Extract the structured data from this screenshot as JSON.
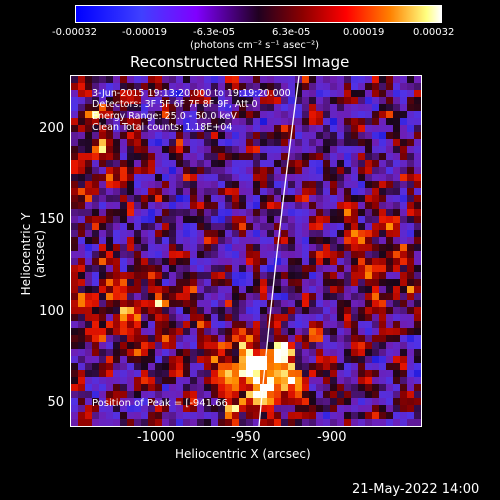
{
  "colorbar": {
    "ticks": [
      "-0.00032",
      "-0.00019",
      "-6.3e-05",
      "6.3e-05",
      "0.00019",
      "0.00032"
    ],
    "units": "(photons cm⁻² s⁻¹ asec⁻²)"
  },
  "title": "Reconstructed RHESSI Image",
  "info": {
    "time_range": "3-Jun-2015 19:13:20.000 to 19:19:20.000",
    "detectors": "Detectors: 3F 5F 6F 7F 8F 9F, Att 0",
    "energy": "Energy Range: 25.0 - 50.0 keV",
    "algorithm": "Clean    Total counts: 1.18E+04"
  },
  "peak_label": "Position of Peak = [-941.66",
  "axes": {
    "x_title": "Heliocentric X (arcsec)",
    "y_title": "Heliocentric Y (arcsec)",
    "x_ticks": [
      "-1000",
      "-950",
      "-900"
    ],
    "y_ticks": [
      "200",
      "150",
      "100",
      "50"
    ]
  },
  "footer_date": "21-May-2022 14:00"
}
